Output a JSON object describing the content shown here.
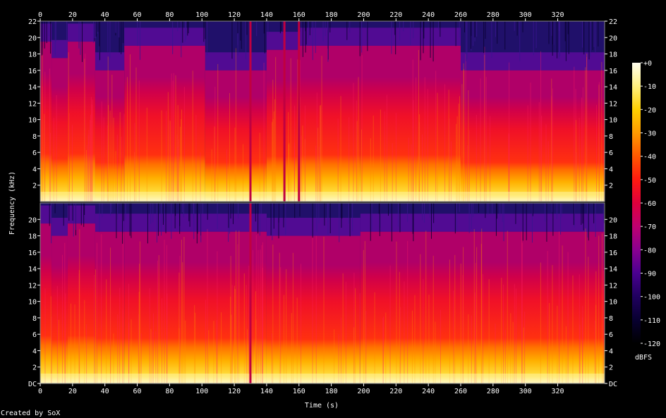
{
  "chart_data": {
    "type": "heatmap",
    "title": "",
    "xlabel": "Time (s)",
    "ylabel": "Frequency (kHz)",
    "xlim": [
      0,
      349
    ],
    "x_ticks": [
      0,
      20,
      40,
      60,
      80,
      100,
      120,
      140,
      160,
      180,
      200,
      220,
      240,
      260,
      280,
      300,
      320
    ],
    "channels": [
      {
        "name": "",
        "ylim": [
          0,
          22
        ],
        "y_ticks": [
          "2",
          "4",
          "6",
          "8",
          "10",
          "12",
          "14",
          "16",
          "18",
          "20",
          "22"
        ],
        "upper_edge_khz": [
          {
            "x": [
              0,
              7
            ],
            "khz": 19.5
          },
          {
            "x": [
              7,
              17
            ],
            "khz": 17.5
          },
          {
            "x": [
              17,
              34
            ],
            "khz": 19.5
          },
          {
            "x": [
              34,
              52
            ],
            "khz": 16.0
          },
          {
            "x": [
              52,
              102
            ],
            "khz": 19.0
          },
          {
            "x": [
              102,
              140
            ],
            "khz": 16.0
          },
          {
            "x": [
              140,
              160
            ],
            "khz": 18.5
          },
          {
            "x": [
              160,
              198
            ],
            "khz": 19.0
          },
          {
            "x": [
              198,
              260
            ],
            "khz": 19.0
          },
          {
            "x": [
              260,
              349
            ],
            "khz": 16.0
          }
        ],
        "gaps_s": [
          130,
          151,
          160
        ]
      },
      {
        "name": "",
        "ylim": [
          0,
          22
        ],
        "y_ticks": [
          "DC",
          "2",
          "4",
          "6",
          "8",
          "10",
          "12",
          "14",
          "16",
          "18",
          "20"
        ],
        "upper_edge_khz": [
          {
            "x": [
              0,
              7
            ],
            "khz": 19.5
          },
          {
            "x": [
              7,
              17
            ],
            "khz": 18.0
          },
          {
            "x": [
              17,
              34
            ],
            "khz": 19.5
          },
          {
            "x": [
              34,
              52
            ],
            "khz": 18.5
          },
          {
            "x": [
              52,
              140
            ],
            "khz": 18.5
          },
          {
            "x": [
              140,
              198
            ],
            "khz": 18.0
          },
          {
            "x": [
              198,
              349
            ],
            "khz": 18.5
          }
        ],
        "gaps_s": [
          130
        ]
      }
    ],
    "colorbar": {
      "label": "dBFS",
      "range": [
        -120,
        0
      ],
      "ticks": [
        "+0",
        "-10",
        "-20",
        "-30",
        "-40",
        "-50",
        "-60",
        "-70",
        "-80",
        "-90",
        "-100",
        "-110",
        "-120"
      ],
      "colors": [
        "#fffff0",
        "#fff080",
        "#ffd000",
        "#ff9a00",
        "#ff5800",
        "#ff1a10",
        "#e0003c",
        "#c00070",
        "#8a0090",
        "#4a0090",
        "#200060",
        "#080030",
        "#000000"
      ]
    }
  },
  "footer": {
    "credit": "Created by SoX"
  }
}
